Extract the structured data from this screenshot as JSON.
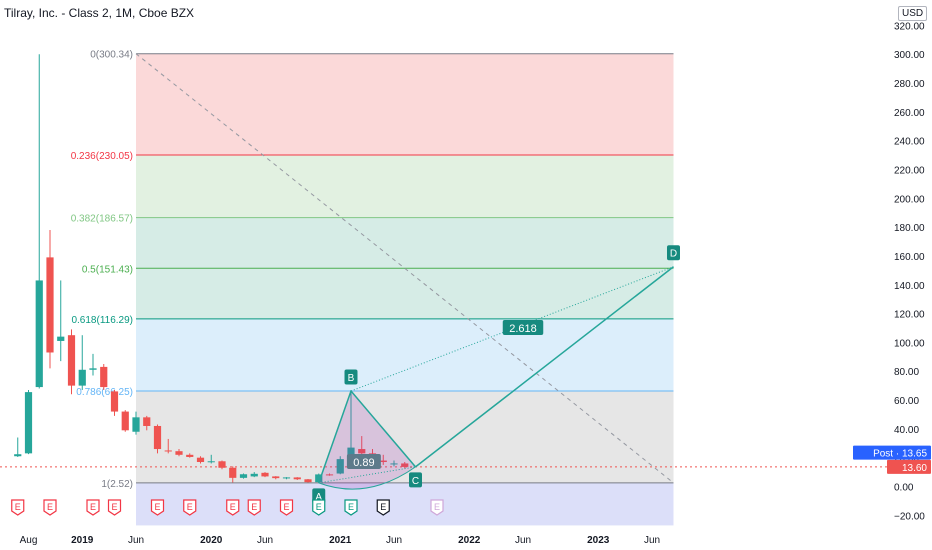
{
  "legend": {
    "title": "Tilray, Inc. - Class 2, 1M, Cboe BZX"
  },
  "currency": "USD",
  "colors": {
    "up": "#26a69a",
    "down": "#ef5350",
    "pattern": "#26a69a",
    "fib_bg": [
      "#fbd9d9",
      "#e2f1e1",
      "#d6ece6",
      "#d6ece6",
      "#dceefb",
      "#e6e6e6",
      "#dcdff9"
    ]
  },
  "chart_data": {
    "type": "candlestick",
    "x_ticks": [
      {
        "label": "Aug",
        "t": 0
      },
      {
        "label": "2019",
        "t": 5
      },
      {
        "label": "Jun",
        "t": 10
      },
      {
        "label": "2020",
        "t": 17
      },
      {
        "label": "Jun",
        "t": 22
      },
      {
        "label": "2021",
        "t": 29
      },
      {
        "label": "Jun",
        "t": 34
      },
      {
        "label": "2022",
        "t": 41
      },
      {
        "label": "Jun",
        "t": 46
      },
      {
        "label": "2023",
        "t": 53
      },
      {
        "label": "Jun",
        "t": 58
      }
    ],
    "y_ticks": [
      -20,
      0,
      20,
      40,
      60,
      80,
      100,
      120,
      140,
      160,
      180,
      200,
      220,
      240,
      260,
      280,
      300,
      320
    ],
    "ylim": [
      -27,
      323
    ],
    "candles": [
      {
        "t": -1,
        "o": 21.0,
        "h": 34.0,
        "l": 20.5,
        "c": 22.4
      },
      {
        "t": 0,
        "o": 23.0,
        "h": 67.0,
        "l": 22.5,
        "c": 65.5
      },
      {
        "t": 1,
        "o": 69.0,
        "h": 300.0,
        "l": 68.0,
        "c": 143.0
      },
      {
        "t": 2,
        "o": 159.0,
        "h": 178.0,
        "l": 82.0,
        "c": 93.0
      },
      {
        "t": 3,
        "o": 101.0,
        "h": 143.0,
        "l": 87.0,
        "c": 104.0
      },
      {
        "t": 4,
        "o": 105.0,
        "h": 109.0,
        "l": 64.0,
        "c": 70.0
      },
      {
        "t": 5,
        "o": 70.0,
        "h": 105.0,
        "l": 67.0,
        "c": 81.0
      },
      {
        "t": 6,
        "o": 81.0,
        "h": 92.0,
        "l": 77.0,
        "c": 82.0
      },
      {
        "t": 7,
        "o": 83.0,
        "h": 85.0,
        "l": 67.0,
        "c": 69.0
      },
      {
        "t": 8,
        "o": 66.0,
        "h": 67.0,
        "l": 49.0,
        "c": 52.0
      },
      {
        "t": 9,
        "o": 52.0,
        "h": 53.0,
        "l": 38.0,
        "c": 39.0
      },
      {
        "t": 10,
        "o": 38.0,
        "h": 52.0,
        "l": 36.0,
        "c": 48.0
      },
      {
        "t": 11,
        "o": 48.0,
        "h": 49.0,
        "l": 39.0,
        "c": 42.0
      },
      {
        "t": 12,
        "o": 42.0,
        "h": 43.0,
        "l": 23.0,
        "c": 26.0
      },
      {
        "t": 13,
        "o": 25.0,
        "h": 33.0,
        "l": 23.0,
        "c": 24.5
      },
      {
        "t": 14,
        "o": 24.5,
        "h": 26.0,
        "l": 21.0,
        "c": 22.0
      },
      {
        "t": 15,
        "o": 22.0,
        "h": 23.0,
        "l": 20.0,
        "c": 20.5
      },
      {
        "t": 16,
        "o": 20.0,
        "h": 21.0,
        "l": 16.0,
        "c": 17.0
      },
      {
        "t": 17,
        "o": 17.0,
        "h": 22.0,
        "l": 16.0,
        "c": 17.5
      },
      {
        "t": 18,
        "o": 17.5,
        "h": 18.0,
        "l": 12.0,
        "c": 13.0
      },
      {
        "t": 19,
        "o": 13.0,
        "h": 14.0,
        "l": 2.8,
        "c": 6.0
      },
      {
        "t": 20,
        "o": 6.0,
        "h": 9.0,
        "l": 5.5,
        "c": 8.5
      },
      {
        "t": 21,
        "o": 7.0,
        "h": 10.0,
        "l": 6.5,
        "c": 8.8
      },
      {
        "t": 22,
        "o": 9.5,
        "h": 10.0,
        "l": 6.5,
        "c": 7.0
      },
      {
        "t": 23,
        "o": 7.0,
        "h": 7.2,
        "l": 5.0,
        "c": 5.8
      },
      {
        "t": 24,
        "o": 5.8,
        "h": 6.5,
        "l": 5.0,
        "c": 6.3
      },
      {
        "t": 25,
        "o": 6.3,
        "h": 6.5,
        "l": 4.5,
        "c": 5.0
      },
      {
        "t": 26,
        "o": 5.0,
        "h": 5.2,
        "l": 2.8,
        "c": 3.0
      },
      {
        "t": 27,
        "o": 3.0,
        "h": 9.0,
        "l": 2.5,
        "c": 8.4
      },
      {
        "t": 28,
        "o": 8.4,
        "h": 9.0,
        "l": 7.5,
        "c": 8.0
      },
      {
        "t": 29,
        "o": 9.0,
        "h": 21.0,
        "l": 8.5,
        "c": 19.0
      },
      {
        "t": 30,
        "o": 19.0,
        "h": 67.0,
        "l": 17.0,
        "c": 27.0
      },
      {
        "t": 31,
        "o": 26.0,
        "h": 35.0,
        "l": 22.0,
        "c": 23.0
      },
      {
        "t": 32,
        "o": 23.0,
        "h": 26.0,
        "l": 16.0,
        "c": 18.0
      },
      {
        "t": 33,
        "o": 18.0,
        "h": 22.0,
        "l": 15.0,
        "c": 17.0
      },
      {
        "t": 34,
        "o": 16.0,
        "h": 18.0,
        "l": 14.0,
        "c": 16.0
      },
      {
        "t": 35,
        "o": 16.0,
        "h": 17.0,
        "l": 12.5,
        "c": 13.6
      }
    ],
    "fib_levels": [
      {
        "ratio": "0",
        "value": 300.34,
        "label": "0(300.34)",
        "color": "#787b86"
      },
      {
        "ratio": "0.236",
        "value": 230.05,
        "label": "0.236(230.05)",
        "color": "#f23645"
      },
      {
        "ratio": "0.382",
        "value": 186.57,
        "label": "0.382(186.57)",
        "color": "#81c784"
      },
      {
        "ratio": "0.5",
        "value": 151.43,
        "label": "0.5(151.43)",
        "color": "#4caf50"
      },
      {
        "ratio": "0.618",
        "value": 116.29,
        "label": "0.618(116.29)",
        "color": "#089981"
      },
      {
        "ratio": "0.786",
        "value": 66.25,
        "label": "0.786(66.25)",
        "color": "#64b5f6"
      },
      {
        "ratio": "1",
        "value": 2.52,
        "label": "1(2.52)",
        "color": "#787b86"
      }
    ],
    "fib_t_range": [
      10,
      60
    ],
    "fib_fill_floor": -27,
    "pattern_points": [
      {
        "name": "A",
        "t": 27,
        "v": 2.52
      },
      {
        "name": "B",
        "t": 30,
        "v": 66.25
      },
      {
        "name": "C",
        "t": 36,
        "v": 13.6
      },
      {
        "name": "D",
        "t": 60,
        "v": 152.5
      }
    ],
    "ratio_labels": [
      {
        "text": "0.89",
        "t": 31.2,
        "v": 17
      },
      {
        "text": "2.618",
        "t": 46,
        "v": 110
      }
    ],
    "diagonal": {
      "from": {
        "t": 10,
        "v": 300.34
      },
      "to": {
        "t": 60,
        "v": 2.52
      }
    },
    "price_labels": [
      {
        "text": "Post · 13.65",
        "v": 23.5
      },
      {
        "text": "13.60",
        "v": 13.6
      }
    ],
    "last_price": 13.6,
    "events": [
      {
        "t": -1,
        "type": "E",
        "kind": "red"
      },
      {
        "t": 2,
        "type": "E",
        "kind": "red"
      },
      {
        "t": 6,
        "type": "E",
        "kind": "red"
      },
      {
        "t": 8,
        "type": "E",
        "kind": "red"
      },
      {
        "t": 12,
        "type": "E",
        "kind": "red"
      },
      {
        "t": 15,
        "type": "E",
        "kind": "red"
      },
      {
        "t": 19,
        "type": "E",
        "kind": "red"
      },
      {
        "t": 21,
        "type": "E",
        "kind": "red"
      },
      {
        "t": 24,
        "type": "E",
        "kind": "red"
      },
      {
        "t": 27,
        "type": "E",
        "kind": "green"
      },
      {
        "t": 30,
        "type": "E",
        "kind": "green"
      },
      {
        "t": 33,
        "type": "E",
        "kind": "dark"
      },
      {
        "t": 38,
        "type": "E",
        "kind": "faint"
      }
    ]
  }
}
